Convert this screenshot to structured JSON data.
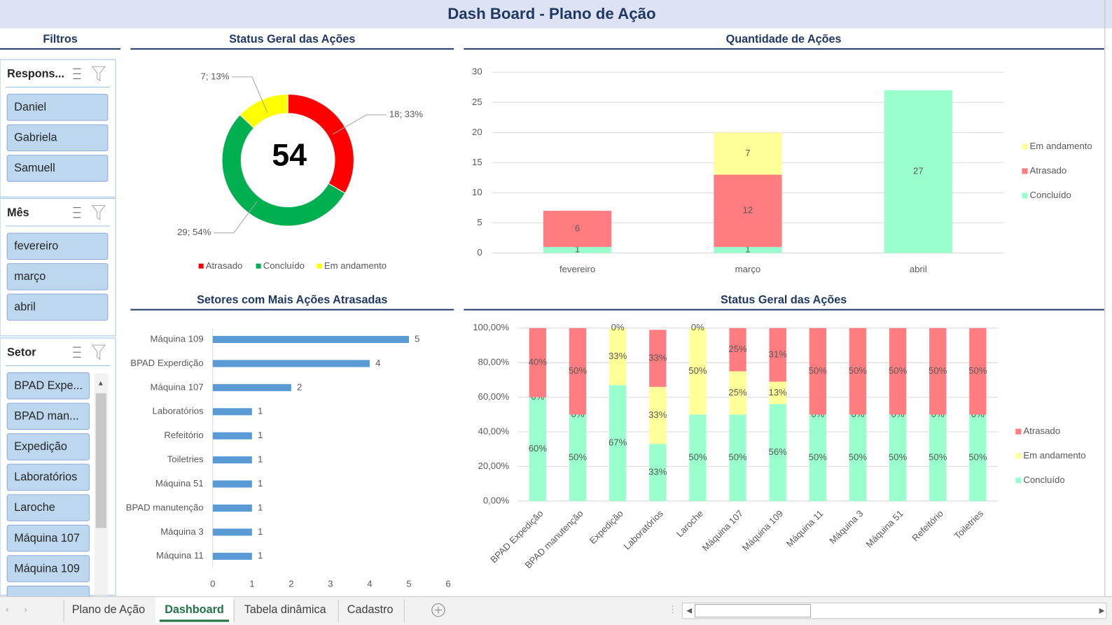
{
  "header": {
    "title": "Dash Board - Plano de Ação"
  },
  "filters": {
    "title": "Filtros",
    "slicers": [
      {
        "title": "Respons...",
        "items": [
          "Daniel",
          "Gabriela",
          "Samuell"
        ]
      },
      {
        "title": "Mês",
        "items": [
          "fevereiro",
          "março",
          "abril"
        ]
      },
      {
        "title": "Setor",
        "items": [
          "BPAD Expe...",
          "BPAD man...",
          "Expedição",
          "Laboratórios",
          "Laroche",
          "Máquina 107",
          "Máquina 109"
        ]
      }
    ]
  },
  "tabs": [
    "Plano de Ação",
    "Dashboard",
    "Tabela dinâmica",
    "Cadastro"
  ],
  "active_tab": 1,
  "chart_data": [
    {
      "type": "donut",
      "title": "Status Geral das Ações",
      "categories": [
        "Atrasado",
        "Concluído",
        "Em andamento"
      ],
      "values": [
        18,
        29,
        7
      ],
      "value_labels": [
        "18; 33%",
        "29; 54%",
        "7; 13%"
      ],
      "colors": [
        "#ff0000",
        "#00b050",
        "#ffff00"
      ],
      "total": 54
    },
    {
      "type": "stacked_bar",
      "title": "Quantidade de Ações",
      "categories": [
        "fevereiro",
        "março",
        "abril"
      ],
      "series": [
        {
          "name": "Concluído",
          "color": "#99ffcc",
          "values": [
            1,
            1,
            27
          ]
        },
        {
          "name": "Atrasado",
          "color": "#ff7c80",
          "values": [
            6,
            12,
            null
          ]
        },
        {
          "name": "Em andamento",
          "color": "#ffff99",
          "values": [
            null,
            7,
            null
          ]
        }
      ],
      "ylim": [
        0,
        30
      ],
      "yticks": [
        0,
        5,
        10,
        15,
        20,
        25,
        30
      ],
      "grid": true
    },
    {
      "type": "hbar",
      "title": "Setores com Mais Ações Atrasadas",
      "categories": [
        "Máquina 109",
        "BPAD Experdição",
        "Máquina 107",
        "Laboratórios",
        "Refeitório",
        "Toiletries",
        "Máquina 51",
        "BPAD manutenção",
        "Máquina 3",
        "Máquina 11"
      ],
      "values": [
        5,
        4,
        2,
        1,
        1,
        1,
        1,
        1,
        1,
        1
      ],
      "color": "#5b9bd5",
      "xlim": [
        0,
        6
      ],
      "xticks": [
        0,
        1,
        2,
        3,
        4,
        5,
        6
      ]
    },
    {
      "type": "stacked_percent",
      "title": "Status Geral das Ações",
      "categories": [
        "BPAD Expedição",
        "BPAD manutenção",
        "Expedição",
        "Laboratórios",
        "Laroche",
        "Máquina 107",
        "Máquina 109",
        "Máquina 11",
        "Máquina 3",
        "Máquina 51",
        "Refeitório",
        "Toiletries"
      ],
      "series": [
        {
          "name": "Concluído",
          "color": "#99ffcc",
          "values": [
            60,
            50,
            67,
            33,
            50,
            50,
            56,
            50,
            50,
            50,
            50,
            50
          ],
          "value_labels": [
            "60%",
            "50%",
            "67%",
            "33%",
            "50%",
            "50%",
            "56%",
            "50%",
            "50%",
            "50%",
            "50%",
            "50%"
          ]
        },
        {
          "name": "Em andamento",
          "color": "#ffff99",
          "values": [
            0,
            0,
            33,
            33,
            50,
            25,
            13,
            0,
            0,
            0,
            0,
            0
          ],
          "value_labels": [
            "0%",
            "0%",
            "33%",
            "33%",
            "50%",
            "25%",
            "13%",
            "0%",
            "0%",
            "0%",
            "0%",
            "0%"
          ]
        },
        {
          "name": "Atrasado",
          "color": "#ff7c80",
          "values": [
            40,
            50,
            0,
            33,
            0,
            25,
            31,
            50,
            50,
            50,
            50,
            50
          ],
          "value_labels": [
            "40%",
            "50%",
            "0%",
            "33%",
            "0%",
            "25%",
            "31%",
            "50%",
            "50%",
            "50%",
            "50%",
            "50%"
          ]
        }
      ],
      "ylim": [
        0,
        100
      ],
      "yticks": [
        {
          "value": 0,
          "label": "0,00%"
        },
        {
          "value": 20,
          "label": "20,00%"
        },
        {
          "value": 40,
          "label": "40,00%"
        },
        {
          "value": 60,
          "label": "60,00%"
        },
        {
          "value": 80,
          "label": "80,00%"
        },
        {
          "value": 100,
          "label": "100,00%"
        }
      ],
      "grid": true
    }
  ]
}
